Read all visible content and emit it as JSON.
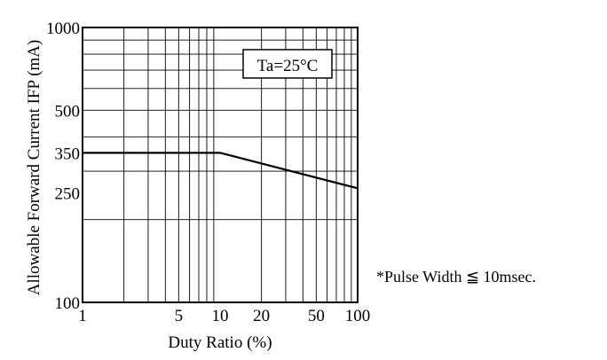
{
  "chart_data": {
    "type": "line",
    "xscale": "log",
    "yscale": "log",
    "xlim": [
      1,
      100
    ],
    "ylim": [
      100,
      1000
    ],
    "grid": true,
    "xlabel": "Duty Ratio (%)",
    "ylabel": "Allowable Forward Current IFP (mA)",
    "x_ticks": [
      "1",
      "5",
      "10",
      "20",
      "50",
      "100"
    ],
    "x_tick_values": [
      1,
      5,
      10,
      20,
      50,
      100
    ],
    "y_ticks": [
      "100",
      "250",
      "350",
      "500",
      "1000"
    ],
    "y_tick_values": [
      100,
      250,
      350,
      500,
      1000
    ],
    "annotation": "Ta=25°C",
    "series": [
      {
        "x": [
          1,
          10,
          100
        ],
        "y": [
          350,
          350,
          260
        ]
      }
    ]
  },
  "footnote": "*Pulse Width ≦ 10msec."
}
